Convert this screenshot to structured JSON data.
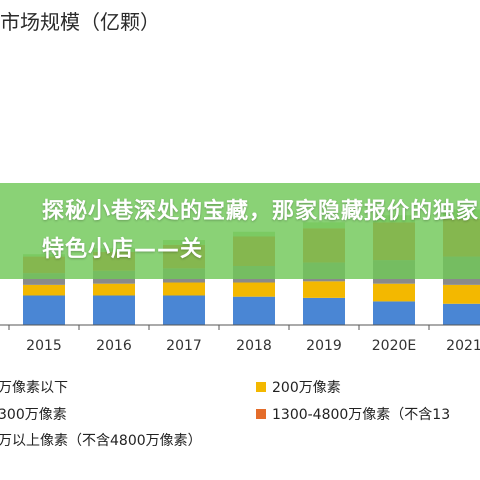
{
  "chart_data": {
    "type": "bar",
    "stacked": true,
    "title": "市场规模（亿颗）",
    "categories": [
      "2015",
      "2016",
      "2017",
      "2018",
      "2019",
      "2020E",
      "2021"
    ],
    "series": [
      {
        "name": "万像素以下",
        "color": "#4a86d4",
        "values": [
          25,
          25,
          25,
          24,
          23,
          20,
          18
        ]
      },
      {
        "name": "200万像素",
        "color": "#f3b800",
        "values": [
          9,
          10,
          11,
          12,
          14,
          15,
          16
        ]
      },
      {
        "name": "300万像素",
        "color": "#8a8a8a",
        "values": [
          10,
          11,
          12,
          14,
          16,
          20,
          24
        ]
      },
      {
        "name": "1300-4800万像素（不含13",
        "color": "#e46c2a",
        "values": [
          14,
          16,
          20,
          25,
          29,
          32,
          32
        ]
      },
      {
        "name": "万以上像素（不含4800万像素）",
        "color": "#a9d18e",
        "values": [
          2,
          3,
          4,
          4,
          5,
          6,
          8
        ]
      }
    ],
    "ylim": [
      0,
      250
    ],
    "grid": false,
    "legend_position": "bottom"
  },
  "overlay": {
    "banner_text": "探秘小巷深处的宝藏，那家隐藏报价的独家特色小店——关"
  }
}
